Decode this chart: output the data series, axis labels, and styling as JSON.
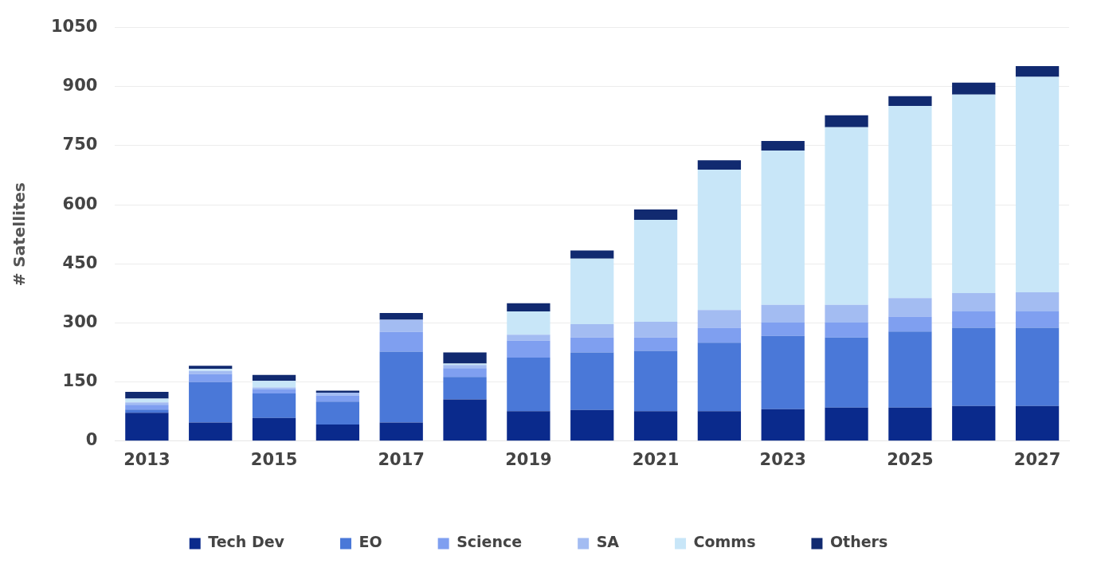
{
  "chart_data": {
    "type": "bar",
    "stacked": true,
    "ylabel": "# Satellites",
    "categories": [
      "2013",
      null,
      "2015",
      null,
      "2017",
      null,
      "2019",
      null,
      "2021",
      null,
      "2023",
      null,
      "2025",
      null,
      "2027"
    ],
    "ylim": [
      0,
      1050
    ],
    "yticks": [
      0,
      150,
      300,
      450,
      600,
      750,
      900,
      1050
    ],
    "grid": "y",
    "legend": "bottom",
    "series": [
      {
        "name": "Tech Dev",
        "color": "#0a2a8c",
        "values": [
          72,
          47,
          59,
          42,
          47,
          106,
          76,
          79,
          76,
          76,
          81,
          85,
          85,
          89,
          89
        ]
      },
      {
        "name": "EO",
        "color": "#4a78d8",
        "values": [
          8,
          103,
          62,
          58,
          180,
          57,
          136,
          146,
          153,
          174,
          186,
          178,
          193,
          199,
          199
        ]
      },
      {
        "name": "Science",
        "color": "#7f9ff0",
        "values": [
          12,
          20,
          11,
          16,
          50,
          22,
          43,
          38,
          34,
          38,
          34,
          38,
          38,
          41,
          41
        ]
      },
      {
        "name": "SA",
        "color": "#a3bcf2",
        "values": [
          6,
          8,
          4,
          7,
          31,
          8,
          15,
          34,
          40,
          45,
          45,
          45,
          47,
          47,
          49
        ]
      },
      {
        "name": "Comms",
        "color": "#c8e6f8",
        "values": [
          10,
          5,
          17,
          null,
          null,
          4,
          59,
          166,
          259,
          356,
          392,
          451,
          488,
          504,
          547
        ]
      },
      {
        "name": "Others",
        "color": "#112a70",
        "values": [
          17,
          8,
          15,
          5,
          17,
          28,
          21,
          21,
          26,
          24,
          24,
          30,
          25,
          30,
          27
        ]
      }
    ]
  }
}
